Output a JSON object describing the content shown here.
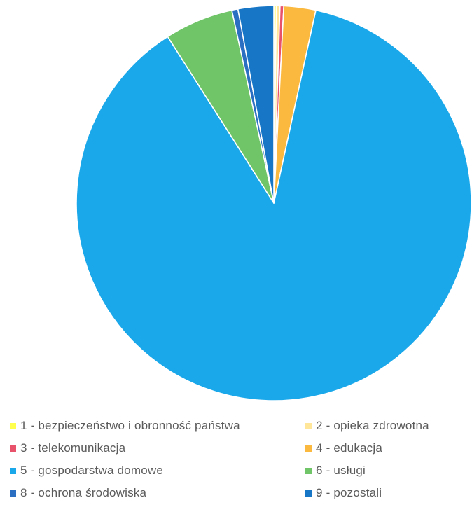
{
  "chart_data": {
    "type": "pie",
    "title": "",
    "legend_position": "bottom",
    "start_angle_deg": 0,
    "direction": "clockwise",
    "slices": [
      {
        "label": "1 - bezpieczeństwo i obronność państwa",
        "value": 0.2,
        "color": "#FFFF4D"
      },
      {
        "label": "2 - opieka zdrowotna",
        "value": 0.3,
        "color": "#FFE699"
      },
      {
        "label": "3 - telekomunikacja",
        "value": 0.3,
        "color": "#E8526B"
      },
      {
        "label": "4 - edukacja",
        "value": 2.6,
        "color": "#FBB940"
      },
      {
        "label": "5 - gospodarstwa domowe",
        "value": 87.2,
        "color": "#1BA8EA"
      },
      {
        "label": "6 - usługi",
        "value": 5.6,
        "color": "#70C569"
      },
      {
        "label": "8 - ochrona środowiska",
        "value": 0.5,
        "color": "#2A6FC2"
      },
      {
        "label": "9 - pozostali",
        "value": 2.9,
        "color": "#1776C6"
      }
    ]
  }
}
